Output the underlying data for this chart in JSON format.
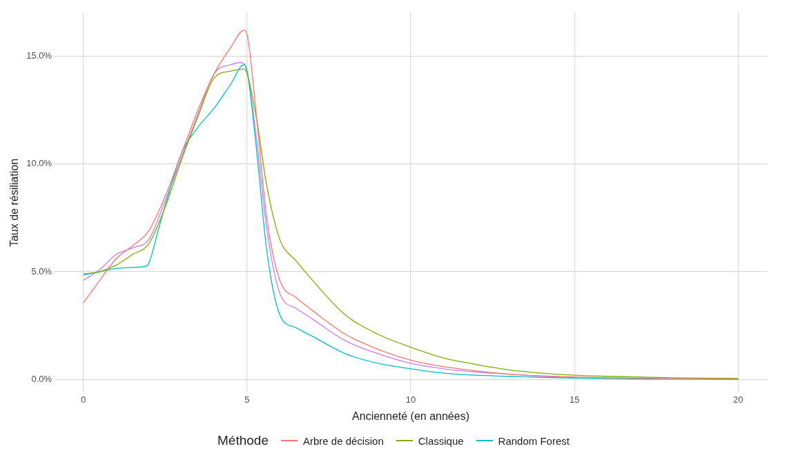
{
  "chart_data": {
    "type": "line",
    "xlabel": "Ancienneté (en années)",
    "ylabel": "Taux de résiliation",
    "legend_title": "Méthode",
    "legend": "bottom",
    "grid": true,
    "marker": "none",
    "line_style": "solid",
    "xlim": [
      -0.9,
      20.9
    ],
    "xticks": [
      0,
      5,
      10,
      15,
      20
    ],
    "ylim": [
      -0.6,
      17
    ],
    "yticks": [
      {
        "value": 0,
        "label": "0.0%"
      },
      {
        "value": 5,
        "label": "5.0%"
      },
      {
        "value": 10,
        "label": "10.0%"
      },
      {
        "value": 15,
        "label": "15.0%"
      }
    ],
    "series": [
      {
        "name": "Arbre de décision",
        "color": "#f8766d",
        "x": [
          0,
          0.5,
          1,
          1.5,
          2,
          2.5,
          3,
          3.5,
          4,
          4.5,
          4.9,
          5,
          5.3,
          5.6,
          6,
          6.5,
          7,
          8,
          9,
          10,
          11,
          12,
          13,
          14,
          15,
          16,
          18,
          20
        ],
        "values": [
          3.55,
          4.6,
          5.6,
          6.2,
          6.9,
          8.5,
          10.5,
          12.5,
          14.2,
          15.4,
          16.2,
          16,
          12,
          7.5,
          4.6,
          3.8,
          3.2,
          2.1,
          1.4,
          0.9,
          0.6,
          0.4,
          0.25,
          0.17,
          0.12,
          0.08,
          0.04,
          0.02
        ]
      },
      {
        "name": "Classique",
        "color": "#7cae00",
        "x": [
          0,
          0.5,
          1,
          1.5,
          2,
          2.5,
          3,
          3.5,
          4,
          4.5,
          4.9,
          5,
          5.3,
          5.6,
          6,
          6.5,
          7,
          8,
          9,
          10,
          11,
          12,
          13,
          14,
          15,
          16,
          18,
          20
        ],
        "values": [
          4.9,
          5,
          5.3,
          5.8,
          6.3,
          8,
          10.2,
          12.2,
          14,
          14.3,
          14.4,
          14.2,
          12,
          9,
          6.5,
          5.5,
          4.6,
          3,
          2.1,
          1.5,
          1,
          0.7,
          0.45,
          0.3,
          0.2,
          0.15,
          0.08,
          0.05
        ]
      },
      {
        "name": "Random Forest",
        "color": "#00bfc4",
        "x": [
          0,
          0.5,
          1,
          1.5,
          1.9,
          2,
          2.3,
          2.6,
          3,
          3.5,
          4,
          4.5,
          4.9,
          5,
          5.3,
          5.6,
          6,
          6.5,
          7,
          8,
          9,
          10,
          11,
          12,
          13,
          14,
          15,
          17,
          20
        ],
        "values": [
          4.85,
          5,
          5.15,
          5.2,
          5.25,
          5.4,
          7,
          8.6,
          10.5,
          11.7,
          12.6,
          13.7,
          14.6,
          14.3,
          10.5,
          6,
          3,
          2.4,
          2,
          1.2,
          0.75,
          0.5,
          0.3,
          0.2,
          0.15,
          0.1,
          0.07,
          0.03,
          0.01
        ]
      },
      {
        "color": "#c77cff",
        "x": [
          0,
          0.5,
          1,
          1.5,
          2,
          2.5,
          3,
          3.5,
          4,
          4.5,
          4.8,
          5,
          5.3,
          5.6,
          6,
          6.5,
          7,
          8,
          9,
          10,
          11,
          12,
          13,
          14,
          15
        ],
        "values": [
          4.6,
          5.1,
          5.8,
          6.1,
          6.5,
          8.3,
          10.3,
          12.3,
          14.2,
          14.6,
          14.7,
          14.3,
          11,
          7,
          4,
          3.3,
          2.8,
          1.8,
          1.2,
          0.75,
          0.5,
          0.35,
          0.25,
          0.15,
          0.1
        ]
      }
    ]
  }
}
